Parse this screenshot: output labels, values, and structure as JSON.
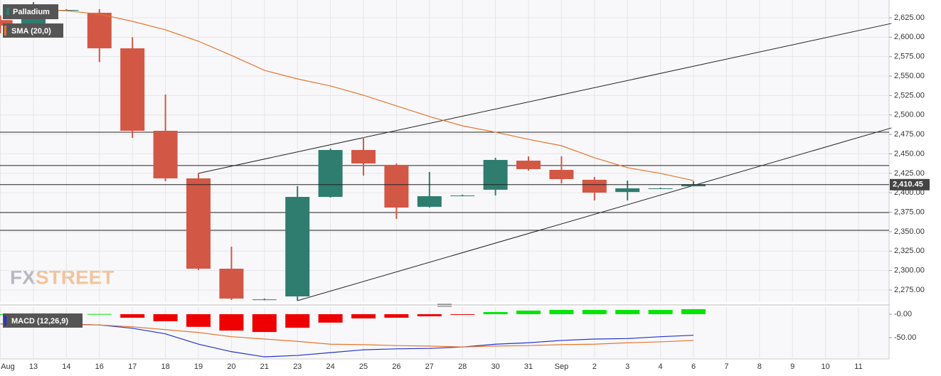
{
  "chart_data": [
    {
      "type": "candlestick",
      "legend": "Palladium",
      "categories": [
        "Aug",
        "13",
        "14",
        "16",
        "17",
        "18",
        "19",
        "20",
        "21",
        "23",
        "24",
        "25",
        "26",
        "27",
        "28",
        "30",
        "31",
        "Sep",
        "2",
        "3",
        "4",
        "6",
        "7",
        "8",
        "9",
        "10",
        "11"
      ],
      "open": [
        2622,
        2615.9,
        2635,
        2631.4,
        2585.7,
        2479.7,
        2418.5,
        2302.4,
        2263,
        2266.8,
        2394.7,
        2455,
        2435.9,
        2382,
        2396.5,
        2403.9,
        2441.3,
        2429.4,
        2416.7,
        2401,
        2405.7,
        2408.3,
        null,
        null,
        null,
        null,
        null
      ],
      "high": [
        2628,
        2645,
        2636,
        2636,
        2600,
        2526.3,
        2425,
        2330.8,
        2264,
        2408.4,
        2456.9,
        2471.5,
        2437.7,
        2426.7,
        2397.5,
        2445,
        2446.8,
        2446.8,
        2420.3,
        2415.7,
        2406.5,
        2414.8,
        null,
        null,
        null,
        null,
        null
      ],
      "low": [
        2605,
        2613,
        2634,
        2568,
        2470.6,
        2414.8,
        2300.6,
        2262.2,
        2262,
        2261.3,
        2393.8,
        2422,
        2366.4,
        2381,
        2395.5,
        2396.5,
        2428.5,
        2412,
        2390.2,
        2390.2,
        2405,
        2408.4,
        null,
        null,
        null,
        null,
        null
      ],
      "close": [
        2615,
        2636.9,
        2635,
        2585.7,
        2479.7,
        2418.5,
        2302.4,
        2264,
        2263,
        2394.7,
        2455,
        2437.7,
        2381,
        2395.6,
        2396.5,
        2442.2,
        2430.4,
        2417.6,
        2400.2,
        2405.7,
        2405.7,
        2411,
        null,
        null,
        null,
        null,
        null
      ],
      "up_color": "#2e7d6e",
      "down_color": "#d35745",
      "series": [
        {
          "name": "SMA (20,0)",
          "color": "#e8742c",
          "values": [
            null,
            2635,
            2634,
            2629.6,
            2620.4,
            2609.5,
            2594.8,
            2576.6,
            2557.4,
            2546.4,
            2537.3,
            2525.4,
            2511.7,
            2498,
            2486.1,
            2477.9,
            2468.7,
            2460.5,
            2445,
            2432.2,
            2424.9,
            2415.7,
            null,
            null,
            null,
            null,
            null
          ]
        }
      ],
      "hlines": [
        2477.9,
        2435,
        2374.6,
        2351.8
      ],
      "trendlines": [
        {
          "x": [
            6,
            27
          ],
          "y": [
            2425,
            2617.7
          ]
        },
        {
          "x": [
            9,
            27
          ],
          "y": [
            2261.3,
            2483.4
          ]
        }
      ],
      "last_price": {
        "value": 2410.45,
        "label": "2,410.45"
      },
      "ylim": [
        2259.5,
        2647.8
      ],
      "yticks": [
        {
          "value": 2275,
          "label": "2,275.00"
        },
        {
          "value": 2300,
          "label": "2,300.00"
        },
        {
          "value": 2325,
          "label": "2,325.00"
        },
        {
          "value": 2350,
          "label": "2,350.00"
        },
        {
          "value": 2375,
          "label": "2,375.00"
        },
        {
          "value": 2400,
          "label": "2,400.00"
        },
        {
          "value": 2425,
          "label": "2,425.00"
        },
        {
          "value": 2450,
          "label": "2,450.00"
        },
        {
          "value": 2475,
          "label": "2,475.00"
        },
        {
          "value": 2500,
          "label": "2,500.00"
        },
        {
          "value": 2525,
          "label": "2,525.00"
        },
        {
          "value": 2550,
          "label": "2,550.00"
        },
        {
          "value": 2575,
          "label": "2,575.00"
        },
        {
          "value": 2600,
          "label": "2,600.00"
        },
        {
          "value": 2625,
          "label": "2,625.00"
        }
      ],
      "grid": true,
      "watermark": [
        "FX",
        "STREET"
      ]
    },
    {
      "type": "macd",
      "legend": "MACD (12,26,9)",
      "histogram": [
        0,
        0.5,
        0.5,
        0.5,
        -7.6,
        -15,
        -27,
        -35,
        -38,
        -29,
        -18,
        -9,
        -7.6,
        -4.5,
        -1.5,
        4.5,
        7.6,
        9,
        9,
        9,
        9,
        10.6,
        null,
        null,
        null,
        null,
        null
      ],
      "positive_color": "#00e600",
      "negative_color": "#ee0000",
      "series": [
        {
          "name": "MACD",
          "color": "#2233cc",
          "values": [
            -21,
            -21,
            -21,
            -23,
            -30,
            -42,
            -64,
            -80,
            -91,
            -88,
            -82,
            -76,
            -74,
            -73,
            -70,
            -64,
            -61,
            -56,
            -53,
            -52,
            -48,
            -45,
            null,
            null,
            null,
            null,
            null
          ]
        },
        {
          "name": "Signal",
          "color": "#e8742c",
          "values": [
            -21,
            -21,
            -22,
            -23,
            -27,
            -33,
            -39,
            -48,
            -53,
            -58,
            -64,
            -65,
            -67,
            -68,
            -70,
            -68,
            -67,
            -65,
            -64,
            -61,
            -59,
            -56,
            null,
            null,
            null,
            null,
            null
          ]
        }
      ],
      "ylim": [
        -95.5,
        15.2
      ],
      "yticks": [
        {
          "value": 0,
          "label": "-0.00"
        },
        {
          "value": -50,
          "label": "-50.00"
        }
      ]
    }
  ]
}
